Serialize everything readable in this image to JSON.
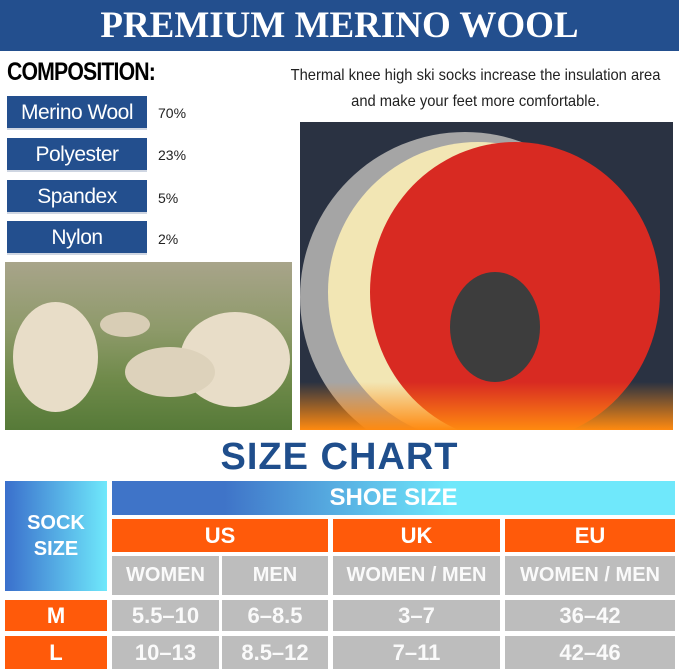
{
  "header": {
    "title": "PREMIUM MERINO WOOL"
  },
  "composition": {
    "title": "COMPOSITION:",
    "items": [
      {
        "label": "Merino Wool",
        "percent": "70%"
      },
      {
        "label": "Polyester",
        "percent": "23%"
      },
      {
        "label": "Spandex",
        "percent": "5%"
      },
      {
        "label": "Nylon",
        "percent": "2%"
      }
    ]
  },
  "description": "Thermal knee high ski socks increase the insulation area and make your feet more comfortable.",
  "size_chart": {
    "title": "SIZE CHART",
    "sock_size_label": "SOCK SIZE",
    "shoe_size_label": "SHOE SIZE",
    "regions": [
      "US",
      "UK",
      "EU"
    ],
    "subheaders": [
      "WOMEN",
      "MEN",
      "WOMEN / MEN",
      "WOMEN / MEN"
    ],
    "rows": [
      {
        "size": "M",
        "values": [
          "5.5–10",
          "6–8.5",
          "3–7",
          "36–42"
        ]
      },
      {
        "size": "L",
        "values": [
          "10–13",
          "8.5–12",
          "7–11",
          "42–46"
        ]
      }
    ]
  },
  "colors": {
    "navy": "#234f8e",
    "orange": "#ff5a0a",
    "gray": "#bdbdbd",
    "cyan": "#6fe8fb"
  }
}
